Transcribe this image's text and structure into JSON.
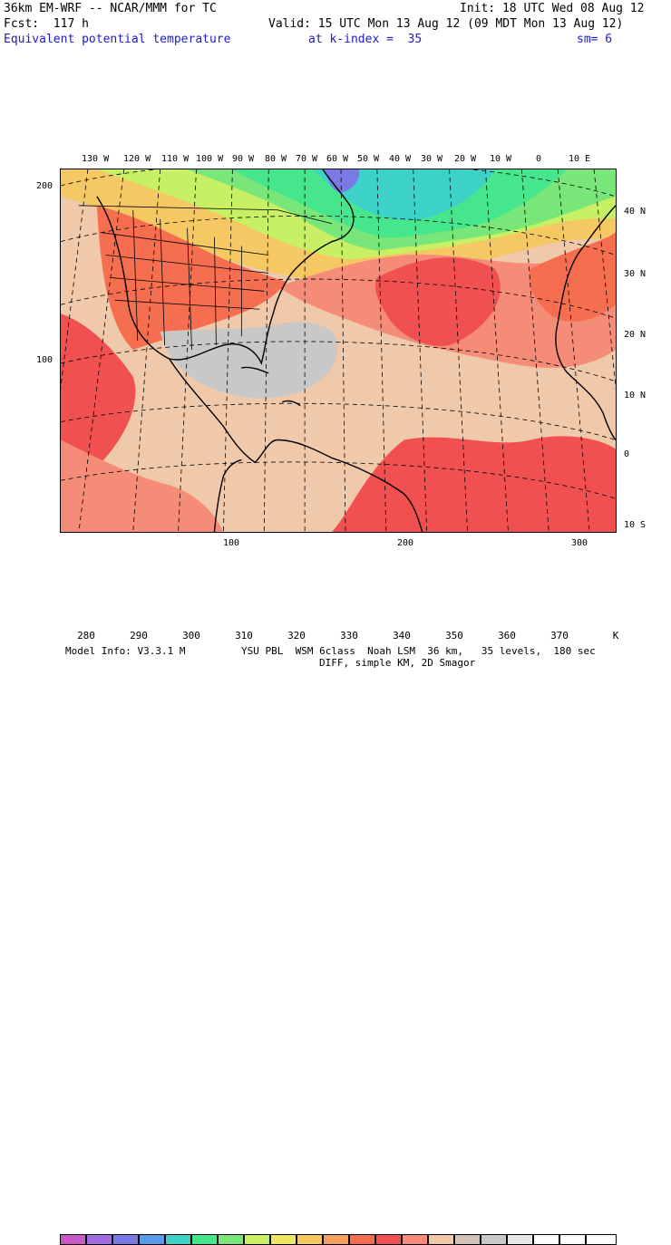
{
  "header": {
    "model": "36km EM-WRF -- NCAR/MMM for TC",
    "init": "Init: 18 UTC Wed 08 Aug 12",
    "fcst": "Fcst:  117 h",
    "valid": "Valid: 15 UTC Mon 13 Aug 12 (09 MDT Mon 13 Aug 12)",
    "field": "Equivalent potential temperature",
    "level": "at k-index =  35",
    "smooth": "sm= 6"
  },
  "map": {
    "lon_labels": [
      "130 W",
      "120 W",
      "110 W",
      "100 W",
      "90 W",
      "80 W",
      "70 W",
      "60 W",
      "50 W",
      "40 W",
      "30 W",
      "20 W",
      "10 W",
      "0",
      "10 E"
    ],
    "lat_labels": [
      "40 N",
      "30 N",
      "20 N",
      "10 N",
      "0",
      "10 S"
    ],
    "y_ticks": [
      "200",
      "100"
    ],
    "x_ticks": [
      "100",
      "200",
      "300"
    ]
  },
  "colorbar": {
    "labels": [
      "280",
      "290",
      "300",
      "310",
      "320",
      "330",
      "340",
      "350",
      "360",
      "370"
    ],
    "unit": "K",
    "colors": [
      "#c85ac8",
      "#a06ee0",
      "#7a7ae6",
      "#5a9ae8",
      "#3cd2c8",
      "#46e68c",
      "#78e678",
      "#c8f064",
      "#f0e664",
      "#f5c864",
      "#f5a05a",
      "#f56e50",
      "#f05050",
      "#f58c78",
      "#f0c8aa",
      "#d2c3b9",
      "#c8c8c8",
      "#e6e6e6",
      "#ffffff",
      "#ffffff",
      "#ffffff"
    ]
  },
  "footer": {
    "model_info": "Model Info: V3.3.1 M",
    "physics": "YSU PBL  WSM 6class  Noah LSM  36 km,   35 levels,  180 sec",
    "diff": "DIFF, simple KM, 2D Smagor"
  }
}
